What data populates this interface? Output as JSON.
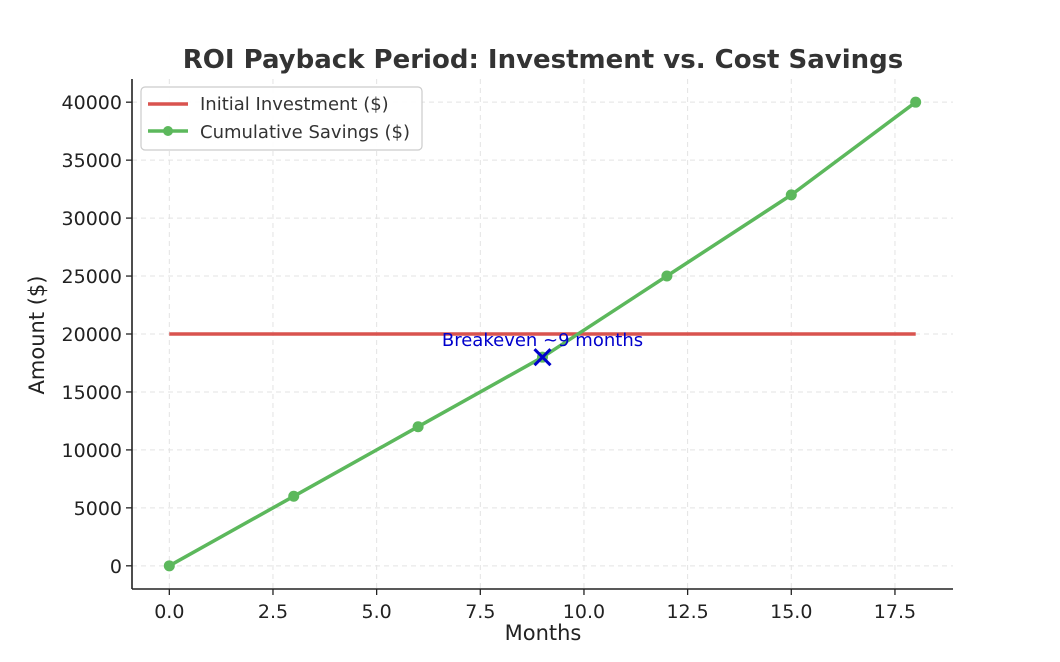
{
  "chart_data": {
    "type": "line",
    "title": "ROI Payback Period: Investment vs. Cost Savings",
    "xlabel": "Months",
    "ylabel": "Amount ($)",
    "xlim": [
      -0.9,
      18.9
    ],
    "ylim": [
      -2000,
      42000
    ],
    "xticks": [
      0.0,
      2.5,
      5.0,
      7.5,
      10.0,
      12.5,
      15.0,
      17.5
    ],
    "xtick_labels": [
      "0.0",
      "2.5",
      "5.0",
      "7.5",
      "10.0",
      "12.5",
      "15.0",
      "17.5"
    ],
    "yticks": [
      0,
      5000,
      10000,
      15000,
      20000,
      25000,
      30000,
      35000,
      40000
    ],
    "ytick_labels": [
      "0",
      "5000",
      "10000",
      "15000",
      "20000",
      "25000",
      "30000",
      "35000",
      "40000"
    ],
    "grid": true,
    "legend_position": "top-left",
    "series": [
      {
        "name": "Initial Investment ($)",
        "x": [
          0,
          18
        ],
        "y": [
          20000,
          20000
        ],
        "color": "#d9534f",
        "marker": "none"
      },
      {
        "name": "Cumulative Savings ($)",
        "x": [
          0,
          3,
          6,
          9,
          12,
          15,
          18
        ],
        "y": [
          0,
          6000,
          12000,
          18000,
          25000,
          32000,
          40000
        ],
        "color": "#5cb85c",
        "marker": "circle"
      }
    ],
    "annotations": [
      {
        "text": "Breakeven ~9 months",
        "x": 9,
        "y": 18000,
        "marker": "x",
        "color": "#0000cc"
      }
    ]
  }
}
